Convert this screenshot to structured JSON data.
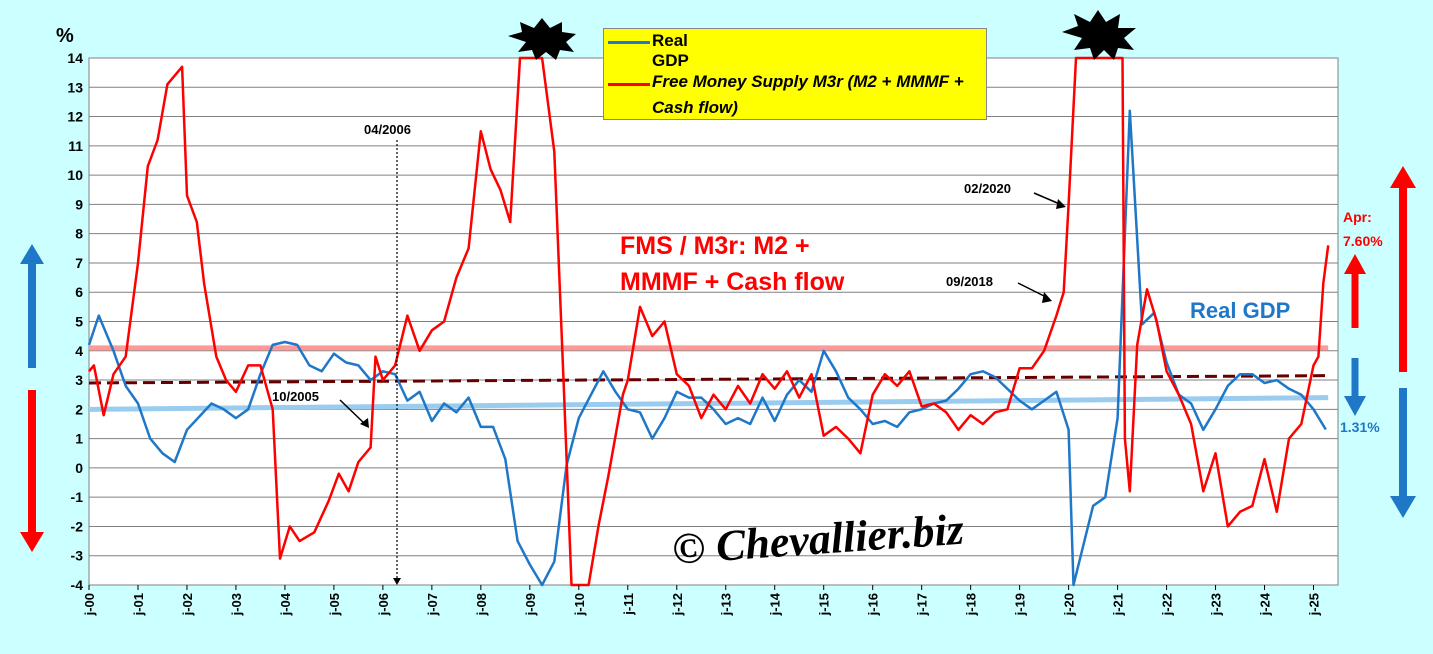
{
  "chart_data": {
    "type": "line",
    "ylabel": "%",
    "ylim": [
      -4,
      14
    ],
    "yticks": [
      "14",
      "13",
      "12",
      "11",
      "10",
      "9",
      "8",
      "7",
      "6",
      "5",
      "4",
      "3",
      "2",
      "1",
      "0",
      "-1",
      "-2",
      "-3",
      "-4"
    ],
    "xticks": [
      "j-00",
      "j-01",
      "j-02",
      "j-03",
      "j-04",
      "j-05",
      "j-06",
      "j-07",
      "j-08",
      "j-09",
      "j-10",
      "j-11",
      "j-12",
      "j-13",
      "j-14",
      "j-15",
      "j-16",
      "j-17",
      "j-18",
      "j-19",
      "j-20",
      "j-21",
      "j-22",
      "j-23",
      "j-24",
      "j-25"
    ],
    "grid": true,
    "legend_position": "top-center",
    "series": [
      {
        "name": "Real GDP",
        "color": "#1f77c8",
        "points": [
          [
            2000.0,
            4.2
          ],
          [
            2000.2,
            5.2
          ],
          [
            2000.5,
            4.0
          ],
          [
            2000.75,
            2.8
          ],
          [
            2001.0,
            2.2
          ],
          [
            2001.25,
            1.0
          ],
          [
            2001.5,
            0.5
          ],
          [
            2001.75,
            0.2
          ],
          [
            2002.0,
            1.3
          ],
          [
            2002.5,
            2.2
          ],
          [
            2002.75,
            2.0
          ],
          [
            2003.0,
            1.7
          ],
          [
            2003.25,
            2.0
          ],
          [
            2003.5,
            3.2
          ],
          [
            2003.75,
            4.2
          ],
          [
            2004.0,
            4.3
          ],
          [
            2004.25,
            4.2
          ],
          [
            2004.5,
            3.5
          ],
          [
            2004.75,
            3.3
          ],
          [
            2005.0,
            3.9
          ],
          [
            2005.25,
            3.6
          ],
          [
            2005.5,
            3.5
          ],
          [
            2005.75,
            3.0
          ],
          [
            2006.0,
            3.3
          ],
          [
            2006.25,
            3.2
          ],
          [
            2006.5,
            2.3
          ],
          [
            2006.75,
            2.6
          ],
          [
            2007.0,
            1.6
          ],
          [
            2007.25,
            2.2
          ],
          [
            2007.5,
            1.9
          ],
          [
            2007.75,
            2.4
          ],
          [
            2008.0,
            1.4
          ],
          [
            2008.25,
            1.4
          ],
          [
            2008.5,
            0.3
          ],
          [
            2008.75,
            -2.5
          ],
          [
            2009.0,
            -3.3
          ],
          [
            2009.25,
            -4.0
          ],
          [
            2009.5,
            -3.2
          ],
          [
            2009.75,
            0.1
          ],
          [
            2010.0,
            1.7
          ],
          [
            2010.25,
            2.5
          ],
          [
            2010.5,
            3.3
          ],
          [
            2010.75,
            2.6
          ],
          [
            2011.0,
            2.0
          ],
          [
            2011.25,
            1.9
          ],
          [
            2011.5,
            1.0
          ],
          [
            2011.75,
            1.7
          ],
          [
            2012.0,
            2.6
          ],
          [
            2012.25,
            2.4
          ],
          [
            2012.5,
            2.4
          ],
          [
            2012.75,
            2.0
          ],
          [
            2013.0,
            1.5
          ],
          [
            2013.25,
            1.7
          ],
          [
            2013.5,
            1.5
          ],
          [
            2013.75,
            2.4
          ],
          [
            2014.0,
            1.6
          ],
          [
            2014.25,
            2.5
          ],
          [
            2014.5,
            3.0
          ],
          [
            2014.75,
            2.6
          ],
          [
            2015.0,
            4.0
          ],
          [
            2015.25,
            3.3
          ],
          [
            2015.5,
            2.4
          ],
          [
            2015.75,
            2.0
          ],
          [
            2016.0,
            1.5
          ],
          [
            2016.25,
            1.6
          ],
          [
            2016.5,
            1.4
          ],
          [
            2016.75,
            1.9
          ],
          [
            2017.0,
            2.0
          ],
          [
            2017.25,
            2.2
          ],
          [
            2017.5,
            2.3
          ],
          [
            2017.75,
            2.7
          ],
          [
            2018.0,
            3.2
          ],
          [
            2018.25,
            3.3
          ],
          [
            2018.5,
            3.1
          ],
          [
            2018.75,
            2.7
          ],
          [
            2019.0,
            2.3
          ],
          [
            2019.25,
            2.0
          ],
          [
            2019.5,
            2.3
          ],
          [
            2019.75,
            2.6
          ],
          [
            2020.0,
            1.3
          ],
          [
            2020.1,
            -4.0
          ],
          [
            2020.5,
            -1.3
          ],
          [
            2020.75,
            -1.0
          ],
          [
            2021.0,
            1.7
          ],
          [
            2021.25,
            12.2
          ],
          [
            2021.5,
            4.9
          ],
          [
            2021.75,
            5.3
          ],
          [
            2022.0,
            3.6
          ],
          [
            2022.25,
            2.5
          ],
          [
            2022.5,
            2.2
          ],
          [
            2022.75,
            1.3
          ],
          [
            2023.0,
            2.0
          ],
          [
            2023.25,
            2.8
          ],
          [
            2023.5,
            3.2
          ],
          [
            2023.75,
            3.2
          ],
          [
            2024.0,
            2.9
          ],
          [
            2024.25,
            3.0
          ],
          [
            2024.5,
            2.7
          ],
          [
            2024.75,
            2.5
          ],
          [
            2025.0,
            2.0
          ],
          [
            2025.25,
            1.31
          ]
        ]
      },
      {
        "name": "Free Money Supply M3r (M2 + MMMF + Cash flow)",
        "color": "#ff0000",
        "points": [
          [
            2000.0,
            3.3
          ],
          [
            2000.1,
            3.5
          ],
          [
            2000.3,
            1.8
          ],
          [
            2000.5,
            3.2
          ],
          [
            2000.75,
            3.8
          ],
          [
            2001.0,
            7.0
          ],
          [
            2001.2,
            10.3
          ],
          [
            2001.4,
            11.2
          ],
          [
            2001.6,
            13.1
          ],
          [
            2001.9,
            13.7
          ],
          [
            2002.0,
            9.3
          ],
          [
            2002.2,
            8.4
          ],
          [
            2002.35,
            6.3
          ],
          [
            2002.6,
            3.8
          ],
          [
            2002.8,
            3.0
          ],
          [
            2003.0,
            2.6
          ],
          [
            2003.25,
            3.5
          ],
          [
            2003.5,
            3.5
          ],
          [
            2003.75,
            2.0
          ],
          [
            2003.9,
            -3.1
          ],
          [
            2004.1,
            -2.0
          ],
          [
            2004.3,
            -2.5
          ],
          [
            2004.6,
            -2.2
          ],
          [
            2004.9,
            -1.1
          ],
          [
            2005.1,
            -0.2
          ],
          [
            2005.3,
            -0.8
          ],
          [
            2005.5,
            0.2
          ],
          [
            2005.75,
            0.7
          ],
          [
            2005.85,
            3.8
          ],
          [
            2006.0,
            3.0
          ],
          [
            2006.25,
            3.5
          ],
          [
            2006.5,
            5.2
          ],
          [
            2006.75,
            4.0
          ],
          [
            2007.0,
            4.7
          ],
          [
            2007.25,
            5.0
          ],
          [
            2007.5,
            6.5
          ],
          [
            2007.75,
            7.5
          ],
          [
            2008.0,
            11.5
          ],
          [
            2008.2,
            10.2
          ],
          [
            2008.4,
            9.5
          ],
          [
            2008.6,
            8.4
          ],
          [
            2008.8,
            14.0
          ],
          [
            2009.0,
            14.0
          ],
          [
            2009.25,
            14.0
          ],
          [
            2009.5,
            10.8
          ],
          [
            2009.7,
            2.5
          ],
          [
            2009.85,
            -4.0
          ],
          [
            2010.2,
            -4.0
          ],
          [
            2010.4,
            -2.0
          ],
          [
            2010.6,
            -0.3
          ],
          [
            2010.9,
            2.5
          ],
          [
            2011.0,
            3.0
          ],
          [
            2011.25,
            5.5
          ],
          [
            2011.5,
            4.5
          ],
          [
            2011.75,
            5.0
          ],
          [
            2012.0,
            3.2
          ],
          [
            2012.25,
            2.8
          ],
          [
            2012.5,
            1.7
          ],
          [
            2012.75,
            2.5
          ],
          [
            2013.0,
            2.0
          ],
          [
            2013.25,
            2.8
          ],
          [
            2013.5,
            2.2
          ],
          [
            2013.75,
            3.2
          ],
          [
            2014.0,
            2.7
          ],
          [
            2014.25,
            3.3
          ],
          [
            2014.5,
            2.4
          ],
          [
            2014.75,
            3.2
          ],
          [
            2015.0,
            1.1
          ],
          [
            2015.25,
            1.4
          ],
          [
            2015.5,
            1.0
          ],
          [
            2015.75,
            0.5
          ],
          [
            2016.0,
            2.5
          ],
          [
            2016.25,
            3.2
          ],
          [
            2016.5,
            2.8
          ],
          [
            2016.75,
            3.3
          ],
          [
            2017.0,
            2.1
          ],
          [
            2017.25,
            2.2
          ],
          [
            2017.5,
            1.9
          ],
          [
            2017.75,
            1.3
          ],
          [
            2018.0,
            1.8
          ],
          [
            2018.25,
            1.5
          ],
          [
            2018.5,
            1.9
          ],
          [
            2018.75,
            2.0
          ],
          [
            2019.0,
            3.4
          ],
          [
            2019.25,
            3.4
          ],
          [
            2019.5,
            4.0
          ],
          [
            2019.75,
            5.2
          ],
          [
            2019.9,
            6.0
          ],
          [
            2020.0,
            9.0
          ],
          [
            2020.15,
            14.0
          ],
          [
            2021.1,
            14.0
          ],
          [
            2021.15,
            1.0
          ],
          [
            2021.25,
            -0.8
          ],
          [
            2021.4,
            4.2
          ],
          [
            2021.6,
            6.1
          ],
          [
            2021.8,
            5.0
          ],
          [
            2022.0,
            3.3
          ],
          [
            2022.25,
            2.5
          ],
          [
            2022.5,
            1.5
          ],
          [
            2022.75,
            -0.8
          ],
          [
            2023.0,
            0.5
          ],
          [
            2023.25,
            -2.0
          ],
          [
            2023.5,
            -1.5
          ],
          [
            2023.75,
            -1.3
          ],
          [
            2024.0,
            0.3
          ],
          [
            2024.25,
            -1.5
          ],
          [
            2024.5,
            1.0
          ],
          [
            2024.75,
            1.5
          ],
          [
            2025.0,
            3.5
          ],
          [
            2025.1,
            3.8
          ],
          [
            2025.2,
            6.3
          ],
          [
            2025.3,
            7.6
          ]
        ]
      }
    ],
    "reference_lines": [
      {
        "color": "#ff9999",
        "points": [
          [
            2000.0,
            4.1
          ],
          [
            2025.3,
            4.1
          ]
        ]
      },
      {
        "color": "#99ccee",
        "points": [
          [
            2000.0,
            2.0
          ],
          [
            2025.3,
            2.4
          ]
        ]
      },
      {
        "color": "#660000",
        "dash": true,
        "points": [
          [
            2000.0,
            2.9
          ],
          [
            2025.3,
            3.15
          ]
        ]
      }
    ],
    "annotations": [
      {
        "text": "04/2006",
        "x": 2006.3,
        "y": 11.0
      },
      {
        "text": "10/2005",
        "x": 2005.1,
        "y": 2.3
      },
      {
        "text": "02/2020",
        "x": 2019.2,
        "y": 9.7
      },
      {
        "text": "09/2018",
        "x": 2018.4,
        "y": 6.3
      }
    ]
  },
  "labels": {
    "fms_label_line1": "FMS / M3r: M2 +",
    "fms_label_line2": "MMMF + Cash flow",
    "real_gdp_label": "Real GDP",
    "apr_label": "Apr:",
    "apr_value": "7.60%",
    "gdp_value": "1.31%",
    "watermark": "© Chevallier.biz"
  },
  "colors": {
    "background": "#ccffff",
    "plot_background": "#ffffff",
    "legend_background": "#ffff00",
    "red": "#ff0000",
    "blue": "#1f77c8"
  }
}
